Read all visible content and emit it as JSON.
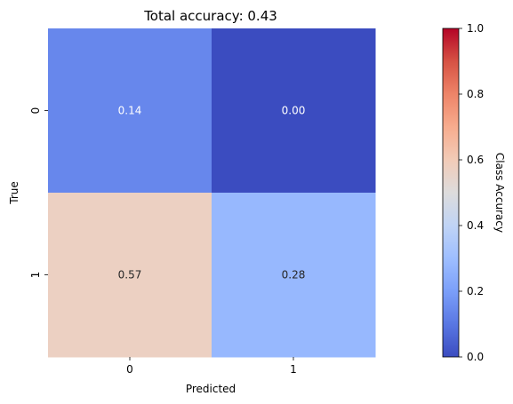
{
  "chart_data": {
    "type": "heatmap",
    "title": "Total accuracy: 0.43",
    "xlabel": "Predicted",
    "ylabel": "True",
    "x_categories": [
      "0",
      "1"
    ],
    "y_categories": [
      "0",
      "1"
    ],
    "values": [
      [
        0.14,
        0.0
      ],
      [
        0.57,
        0.28
      ]
    ],
    "cell_labels": [
      [
        "0.14",
        "0.00"
      ],
      [
        "0.57",
        "0.28"
      ]
    ],
    "colorbar": {
      "label": "Class Accuracy",
      "range": [
        0,
        1
      ],
      "ticks": [
        "0.0",
        "0.2",
        "0.4",
        "0.6",
        "0.8",
        "1.0"
      ],
      "colormap": "coolwarm"
    },
    "colors": {
      "low": "#3b4cc0",
      "mid": "#dddddd",
      "high": "#b40426"
    }
  }
}
